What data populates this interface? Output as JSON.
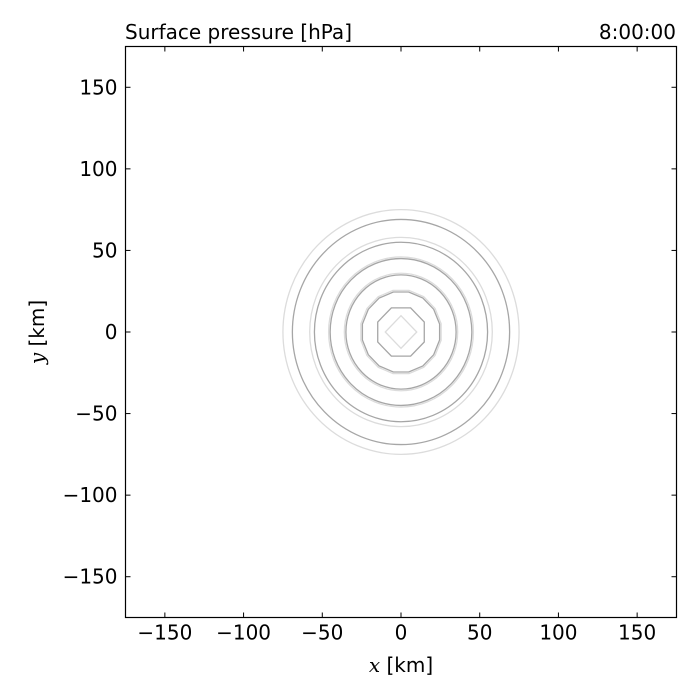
{
  "chart_data": {
    "type": "contour",
    "title": "Surface pressure [hPa]",
    "time_label": "8:00:00",
    "xlabel_var": "x",
    "xlabel_unit": " [km]",
    "ylabel_var": "y",
    "ylabel_unit": " [km]",
    "xlim": [
      -175,
      175
    ],
    "ylim": [
      -175,
      175
    ],
    "xticks": [
      -150,
      -100,
      -50,
      0,
      50,
      100,
      150
    ],
    "yticks": [
      -150,
      -100,
      -50,
      0,
      50,
      100,
      150
    ],
    "xtick_labels": [
      "−150",
      "−100",
      "−50",
      "0",
      "50",
      "100",
      "150"
    ],
    "ytick_labels": [
      "−150",
      "−100",
      "−50",
      "0",
      "50",
      "100",
      "150"
    ],
    "grid": false,
    "contours": [
      {
        "radius_km": 75,
        "color": "#dcdcdc",
        "sides": 0
      },
      {
        "radius_km": 69,
        "color": "#a6a6a6",
        "sides": 0
      },
      {
        "radius_km": 58,
        "color": "#dcdcdc",
        "sides": 0
      },
      {
        "radius_km": 55,
        "color": "#a6a6a6",
        "sides": 0
      },
      {
        "radius_km": 46,
        "color": "#dcdcdc",
        "sides": 0
      },
      {
        "radius_km": 45,
        "color": "#a6a6a6",
        "sides": 0
      },
      {
        "radius_km": 36,
        "color": "#dcdcdc",
        "sides": 0
      },
      {
        "radius_km": 35,
        "color": "#a6a6a6",
        "sides": 0
      },
      {
        "radius_km": 26,
        "color": "#dcdcdc",
        "sides": 16
      },
      {
        "radius_km": 25,
        "color": "#a6a6a6",
        "sides": 16
      },
      {
        "radius_km": 16,
        "color": "#a6a6a6",
        "sides": 8
      },
      {
        "radius_km": 10,
        "color": "#dcdcdc",
        "sides": 4
      }
    ]
  }
}
